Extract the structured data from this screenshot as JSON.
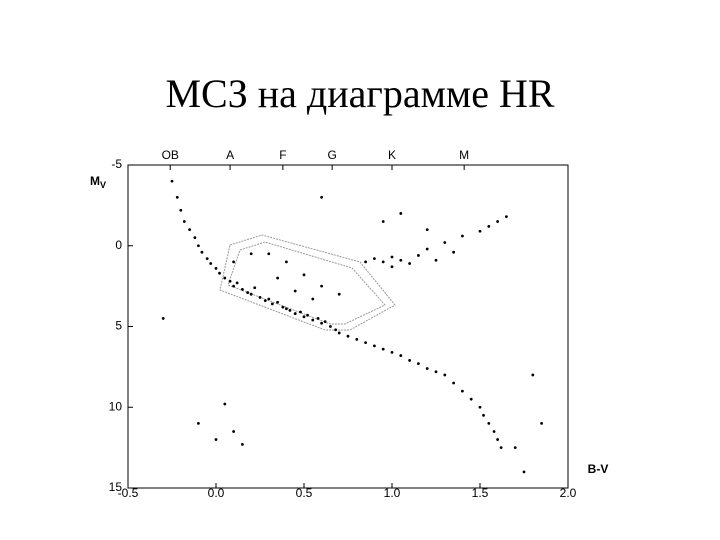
{
  "chart_data": {
    "type": "scatter",
    "title": "МСЗ на диаграмме HR",
    "xlabel": "B-V",
    "ylabel": "M",
    "ylabel_subscript": "V",
    "xlim": [
      -0.5,
      2.0
    ],
    "ylim": [
      -5,
      15
    ],
    "y_inverted": true,
    "color": "#000000",
    "xticks": [
      -0.5,
      {
        "value": 0,
        "label": "0.0"
      },
      0.5,
      {
        "value": 1,
        "label": "1.0"
      },
      1.5,
      {
        "value": 2,
        "label": "2.0"
      }
    ],
    "yticks": [
      -5,
      0,
      5,
      10,
      15
    ],
    "top_ticks": [
      {
        "value": -0.26,
        "label": "OB"
      },
      {
        "value": 0.08,
        "label": "A"
      },
      {
        "value": 0.38,
        "label": "F"
      },
      {
        "value": 0.66,
        "label": "G"
      },
      {
        "value": 1.0,
        "label": "K"
      },
      {
        "value": 1.41,
        "label": "M"
      }
    ],
    "x": [
      -0.22,
      -0.2,
      -0.18,
      -0.15,
      -0.12,
      -0.1,
      -0.08,
      -0.05,
      -0.03,
      0.0,
      0.02,
      0.05,
      0.08,
      0.1,
      0.12,
      0.15,
      0.18,
      0.2,
      0.22,
      0.25,
      0.28,
      0.3,
      0.32,
      0.35,
      0.38,
      0.4,
      0.42,
      0.45,
      0.48,
      0.5,
      0.52,
      0.55,
      0.58,
      0.6,
      0.62,
      0.65,
      0.68,
      0.7,
      0.75,
      0.8,
      0.85,
      0.9,
      0.95,
      1.0,
      1.05,
      1.1,
      1.15,
      1.2,
      1.25,
      1.3,
      1.35,
      1.4,
      1.45,
      1.5,
      1.52,
      1.55,
      1.58,
      1.6,
      1.62,
      0.1,
      0.2,
      0.3,
      0.4,
      0.5,
      0.6,
      0.7,
      0.35,
      0.45,
      0.55,
      0.85,
      0.9,
      0.95,
      1.0,
      1.05,
      1.1,
      1.0,
      1.15,
      1.2,
      1.3,
      1.4,
      1.5,
      1.55,
      1.6,
      1.65,
      1.25,
      1.35,
      0.95,
      1.05,
      1.2,
      -0.3,
      -0.1,
      0.0,
      0.1,
      0.15,
      0.05,
      1.8,
      1.7,
      1.75,
      -0.25,
      0.6,
      1.85
    ],
    "y": [
      -3.0,
      -2.2,
      -1.5,
      -1.0,
      -0.5,
      0.0,
      0.4,
      0.8,
      1.1,
      1.4,
      1.7,
      2.0,
      2.2,
      2.5,
      2.3,
      2.7,
      2.9,
      3.0,
      2.6,
      3.2,
      3.4,
      3.3,
      3.6,
      3.5,
      3.8,
      3.9,
      4.0,
      4.2,
      4.1,
      4.4,
      4.3,
      4.6,
      4.5,
      4.8,
      4.7,
      5.0,
      5.2,
      5.4,
      5.6,
      5.8,
      6.0,
      6.2,
      6.4,
      6.6,
      6.8,
      7.1,
      7.3,
      7.6,
      7.8,
      8.0,
      8.5,
      9.0,
      9.5,
      10.0,
      10.5,
      11.0,
      11.5,
      12.0,
      12.5,
      1.0,
      0.5,
      0.5,
      1.0,
      1.8,
      2.5,
      3.0,
      2.0,
      2.8,
      3.3,
      1.0,
      0.8,
      1.0,
      0.7,
      0.9,
      1.1,
      1.3,
      0.6,
      0.2,
      -0.2,
      -0.6,
      -0.9,
      -1.2,
      -1.5,
      -1.8,
      0.9,
      0.4,
      -1.5,
      -2.0,
      -1.0,
      4.5,
      11.0,
      12.0,
      11.5,
      12.3,
      9.8,
      8.0,
      12.5,
      14.0,
      -4.0,
      -3.0,
      11.0
    ]
  }
}
